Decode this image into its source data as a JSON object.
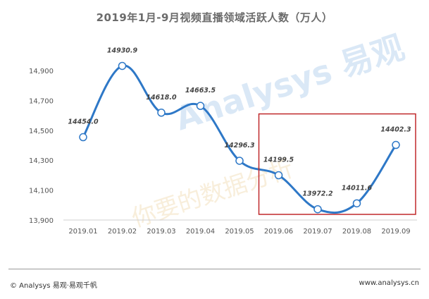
{
  "chart_data": {
    "type": "line",
    "title": "2019年1月-9月视频直播领域活跃人数（万人）",
    "categories": [
      "2019.01",
      "2019.02",
      "2019.03",
      "2019.04",
      "2019.05",
      "2019.06",
      "2019.07",
      "2019.08",
      "2019.09"
    ],
    "values": [
      14454.0,
      14930.9,
      14618.0,
      14663.5,
      14296.3,
      14199.5,
      13972.2,
      14011.6,
      14402.3
    ],
    "value_labels": [
      "14454.0",
      "14930.9",
      "14618.0",
      "14663.5",
      "14296.3",
      "14199.5",
      "13972.2",
      "14011.6",
      "14402.3"
    ],
    "yticks": [
      "13,900",
      "14,100",
      "14,300",
      "14,500",
      "14,700",
      "14,900"
    ],
    "ylim": [
      13900,
      14900
    ],
    "grid": false,
    "line_color": "#2e78c7",
    "highlight_color": "#c0282b",
    "highlight_range": [
      "2019.06",
      "2019.09"
    ]
  },
  "footer": {
    "source": "© Analysys 易观·易观千帆",
    "url": "www.analysys.cn"
  },
  "watermark": {
    "brand": "Analysys 易观",
    "slogan": "你要的数据分析"
  }
}
